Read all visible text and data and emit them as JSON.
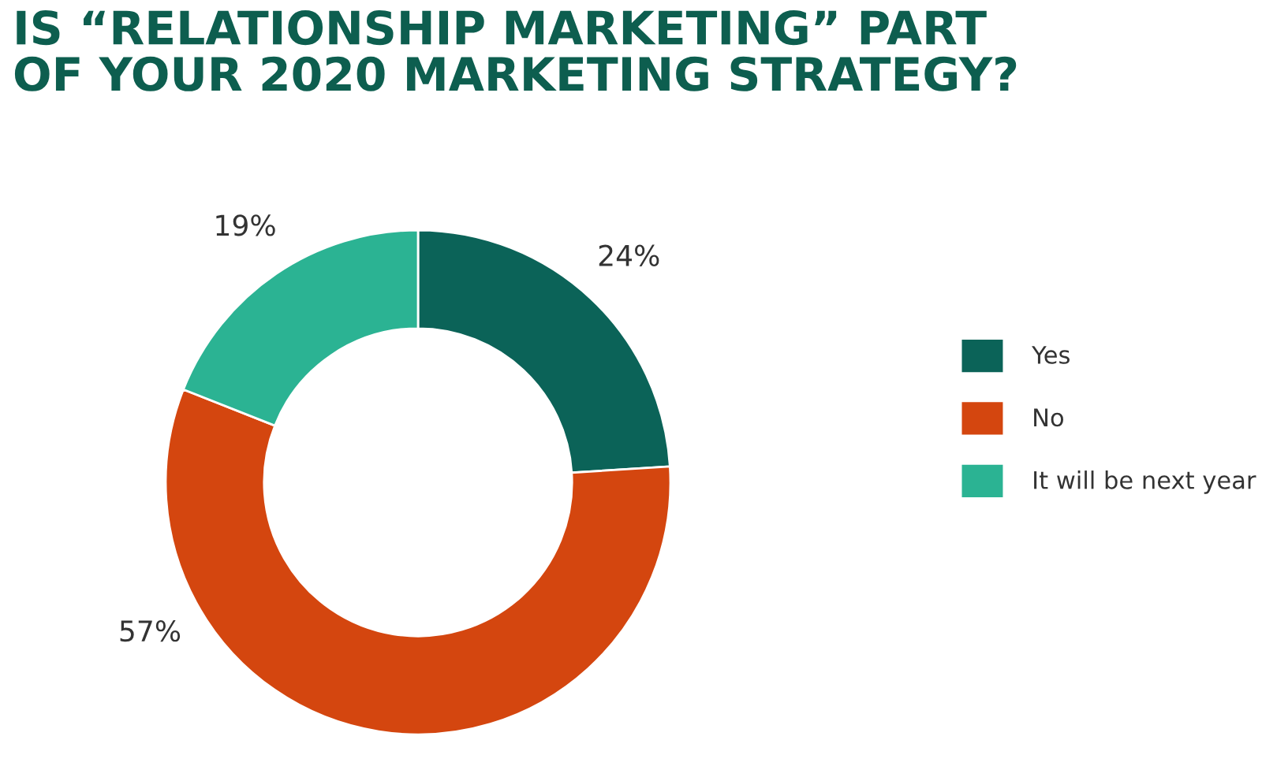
{
  "chart_data": {
    "type": "donut",
    "title": "IS “RELATIONSHIP MARKETING” PART\nOF YOUR 2020 MARKETING STRATEGY?",
    "categories": [
      "Yes",
      "No",
      "It will be next year"
    ],
    "values": [
      24,
      57,
      19
    ],
    "colors": [
      "#0b6358",
      "#d4460f",
      "#2bb393"
    ],
    "value_labels": [
      "24%",
      "57%",
      "19%"
    ],
    "legend": "right"
  }
}
